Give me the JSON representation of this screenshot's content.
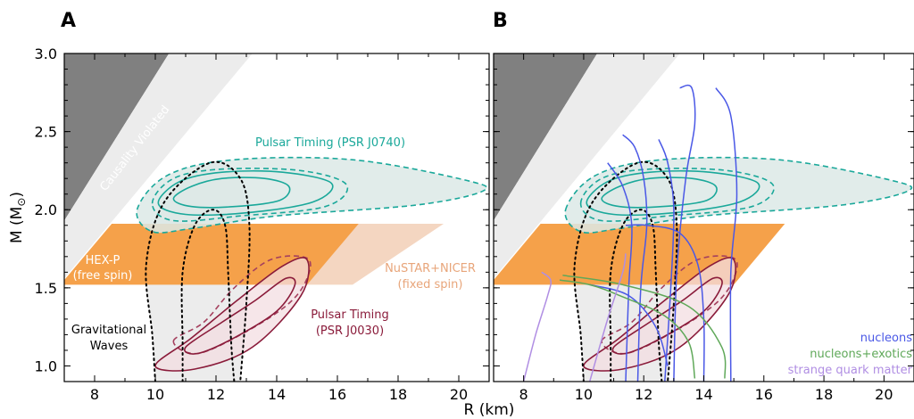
{
  "chart_data": {
    "type": "line",
    "xlabel": "R (km)",
    "ylabel_main": "M (M",
    "ylabel_sub": "⊙",
    "ylabel_end": ")",
    "xlim": [
      7,
      21
    ],
    "ylim": [
      0.9,
      3.0
    ],
    "xticks": [
      8,
      10,
      12,
      14,
      16,
      18,
      20
    ],
    "yticks": [
      1.0,
      1.5,
      2.0,
      2.5,
      3.0
    ],
    "ytick_labels": [
      "1.0",
      "1.5",
      "2.0",
      "2.5",
      "3.0"
    ],
    "colors": {
      "causality": "#808080",
      "hexp": "#f5a14a",
      "nustar": "#f0c4a6",
      "psr0740": "#1aa89a",
      "psr0740_fill": "#dce9e6",
      "psr0030": "#8a1b3a",
      "psr0030_fill": "#f3dde2",
      "gw": "#000000",
      "gw_fill": "#ececec",
      "nucleons": "#4a58e6",
      "exotics": "#5fa859",
      "quark": "#b08ee3"
    },
    "panels": [
      {
        "letter": "A",
        "annotations": {
          "causality": "Causality Violated",
          "psr0740": "Pulsar Timing (PSR J0740)",
          "hexp_line1": "HEX-P",
          "hexp_line2": "(free spin)",
          "nustar_line1": "NuSTAR+NICER",
          "nustar_line2": "(fixed spin)",
          "psr0030_line1": "Pulsar Timing",
          "psr0030_line2": "(PSR J0030)",
          "gw_line1": "Gravitational",
          "gw_line2": "Waves"
        }
      },
      {
        "letter": "B",
        "legend": [
          "nucleons",
          "nucleons+exotics",
          "strange quark matter"
        ]
      }
    ],
    "regions": {
      "causality_boundary": [
        [
          7,
          2.85
        ],
        [
          13.3,
          3.0
        ]
      ],
      "causality_lower": [
        [
          7,
          1.93
        ],
        [
          10.55,
          3.0
        ]
      ],
      "hexp_band": {
        "ymin": 1.52,
        "ymax": 1.91,
        "x_right_top": 16.7,
        "x_right_bottom": 15.0
      },
      "nustar_band": {
        "ymin": 1.52,
        "ymax": 1.91,
        "x_left_bottom": 16.5,
        "x_right_top": 19.5
      },
      "psr0740_contours": {
        "inner": [
          [
            10.6,
            2.07
          ],
          [
            11.2,
            2.15
          ],
          [
            12.2,
            2.2
          ],
          [
            13.6,
            2.2
          ],
          [
            14.4,
            2.15
          ],
          [
            14.1,
            2.06
          ],
          [
            12.6,
            2.02
          ],
          [
            11.2,
            2.02
          ]
        ],
        "outer": [
          [
            10.1,
            2.04
          ],
          [
            10.8,
            2.18
          ],
          [
            12.2,
            2.24
          ],
          [
            14.2,
            2.24
          ],
          [
            15.8,
            2.17
          ],
          [
            15.2,
            2.05
          ],
          [
            13.0,
            1.98
          ],
          [
            11.0,
            1.97
          ]
        ],
        "dashed_inner": [
          [
            9.9,
            2.04
          ],
          [
            10.6,
            2.2
          ],
          [
            12.2,
            2.26
          ],
          [
            14.8,
            2.25
          ],
          [
            16.3,
            2.16
          ],
          [
            15.6,
            2.02
          ],
          [
            12.8,
            1.96
          ],
          [
            10.6,
            1.93
          ]
        ],
        "dashed_outer": [
          [
            9.4,
            2.0
          ],
          [
            10.4,
            2.22
          ],
          [
            12.6,
            2.32
          ],
          [
            16.5,
            2.32
          ],
          [
            20.2,
            2.19
          ],
          [
            20.8,
            2.12
          ],
          [
            18.6,
            2.03
          ],
          [
            14.0,
            1.96
          ],
          [
            11.2,
            1.88
          ],
          [
            9.9,
            1.86
          ]
        ]
      },
      "psr0030_contours": {
        "inner": [
          [
            11.0,
            1.12
          ],
          [
            12.2,
            1.28
          ],
          [
            13.3,
            1.42
          ],
          [
            14.3,
            1.56
          ],
          [
            14.6,
            1.52
          ],
          [
            14.0,
            1.35
          ],
          [
            12.6,
            1.18
          ],
          [
            11.4,
            1.08
          ]
        ],
        "outer": [
          [
            10.0,
            1.0
          ],
          [
            11.2,
            1.18
          ],
          [
            12.7,
            1.42
          ],
          [
            14.2,
            1.64
          ],
          [
            15.0,
            1.68
          ],
          [
            14.8,
            1.45
          ],
          [
            13.2,
            1.12
          ],
          [
            11.3,
            0.98
          ]
        ],
        "dashed": [
          [
            10.6,
            1.16
          ],
          [
            11.6,
            1.28
          ],
          [
            12.6,
            1.5
          ],
          [
            13.8,
            1.68
          ],
          [
            15.0,
            1.69
          ],
          [
            15.0,
            1.56
          ],
          [
            14.4,
            1.4
          ],
          [
            13.0,
            1.22
          ],
          [
            11.4,
            1.08
          ]
        ]
      },
      "gw_contours": {
        "inner": [
          [
            10.9,
            0.9
          ],
          [
            10.9,
            1.15
          ],
          [
            10.9,
            1.6
          ],
          [
            11.3,
            1.9
          ],
          [
            11.9,
            2.0
          ],
          [
            12.3,
            1.9
          ],
          [
            12.4,
            1.6
          ],
          [
            12.5,
            1.15
          ],
          [
            12.6,
            0.9
          ]
        ],
        "outer": [
          [
            10.0,
            0.9
          ],
          [
            9.9,
            1.2
          ],
          [
            9.7,
            1.65
          ],
          [
            10.3,
            2.05
          ],
          [
            11.8,
            2.3
          ],
          [
            12.8,
            2.2
          ],
          [
            13.1,
            1.9
          ],
          [
            13.0,
            1.4
          ],
          [
            12.8,
            0.9
          ]
        ]
      }
    },
    "eos_curves": [
      {
        "series": "nucleons",
        "points": [
          [
            13.0,
            0.9
          ],
          [
            13.1,
            1.6
          ],
          [
            13.4,
            2.2
          ],
          [
            13.7,
            2.55
          ],
          [
            13.6,
            2.78
          ],
          [
            13.2,
            2.78
          ]
        ]
      },
      {
        "series": "nucleons",
        "points": [
          [
            12.7,
            0.9
          ],
          [
            12.9,
            1.5
          ],
          [
            13.0,
            2.0
          ],
          [
            12.8,
            2.3
          ],
          [
            12.5,
            2.45
          ]
        ]
      },
      {
        "series": "nucleons",
        "points": [
          [
            14.9,
            0.9
          ],
          [
            14.9,
            1.6
          ],
          [
            15.1,
            2.1
          ],
          [
            14.9,
            2.6
          ],
          [
            14.4,
            2.78
          ]
        ]
      },
      {
        "series": "nucleons",
        "points": [
          [
            11.8,
            0.9
          ],
          [
            11.9,
            1.5
          ],
          [
            12.1,
            1.9
          ],
          [
            12.0,
            2.2
          ],
          [
            11.7,
            2.4
          ],
          [
            11.3,
            2.48
          ]
        ]
      },
      {
        "series": "nucleons",
        "points": [
          [
            11.4,
            0.9
          ],
          [
            11.5,
            1.5
          ],
          [
            11.6,
            1.9
          ],
          [
            11.3,
            2.15
          ],
          [
            10.8,
            2.3
          ]
        ]
      },
      {
        "series": "nucleons",
        "points": [
          [
            14.0,
            0.9
          ],
          [
            14.0,
            1.3
          ],
          [
            13.8,
            1.65
          ],
          [
            13.2,
            1.85
          ],
          [
            12.1,
            1.9
          ],
          [
            11.4,
            1.9
          ]
        ]
      },
      {
        "series": "nucleons",
        "points": [
          [
            12.8,
            1.0
          ],
          [
            12.4,
            1.25
          ],
          [
            11.5,
            1.45
          ],
          [
            10.2,
            1.52
          ]
        ]
      },
      {
        "series": "exotics",
        "points": [
          [
            13.7,
            0.92
          ],
          [
            13.5,
            1.15
          ],
          [
            12.7,
            1.32
          ],
          [
            11.2,
            1.45
          ],
          [
            10.2,
            1.52
          ],
          [
            9.2,
            1.55
          ]
        ]
      },
      {
        "series": "exotics",
        "points": [
          [
            14.7,
            0.92
          ],
          [
            14.6,
            1.12
          ],
          [
            13.5,
            1.38
          ],
          [
            11.3,
            1.52
          ],
          [
            9.3,
            1.58
          ]
        ]
      },
      {
        "series": "quark",
        "points": [
          [
            8.0,
            0.9
          ],
          [
            8.4,
            1.2
          ],
          [
            8.8,
            1.45
          ],
          [
            8.9,
            1.55
          ],
          [
            8.6,
            1.6
          ]
        ]
      },
      {
        "series": "quark",
        "points": [
          [
            10.2,
            0.9
          ],
          [
            10.8,
            1.3
          ],
          [
            11.3,
            1.6
          ],
          [
            11.4,
            1.72
          ]
        ]
      }
    ]
  }
}
